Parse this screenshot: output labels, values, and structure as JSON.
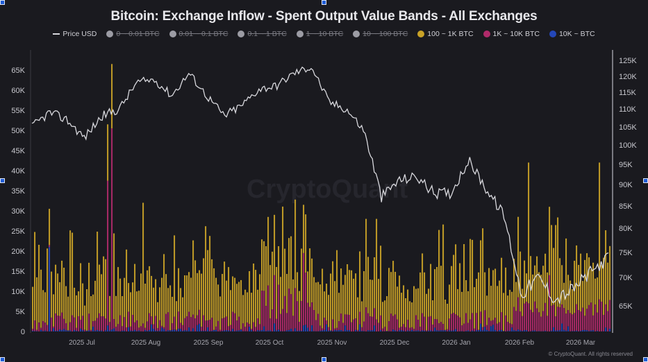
{
  "title": "Bitcoin: Exchange Inflow - Spent Output Value Bands - All Exchanges",
  "legend": [
    {
      "label": "Price USD",
      "type": "line",
      "color": "#d8d8dd",
      "enabled": true
    },
    {
      "label": "0 ~ 0.01 BTC",
      "type": "dot",
      "color": "#9c9ca4",
      "enabled": false
    },
    {
      "label": "0.01 ~ 0.1 BTC",
      "type": "dot",
      "color": "#9c9ca4",
      "enabled": false
    },
    {
      "label": "0.1 ~ 1 BTC",
      "type": "dot",
      "color": "#9c9ca4",
      "enabled": false
    },
    {
      "label": "1 ~ 10 BTC",
      "type": "dot",
      "color": "#9c9ca4",
      "enabled": false
    },
    {
      "label": "10 ~ 100 BTC",
      "type": "dot",
      "color": "#9c9ca4",
      "enabled": false
    },
    {
      "label": "100 ~ 1K BTC",
      "type": "dot",
      "color": "#c9a227",
      "enabled": true
    },
    {
      "label": "1K ~ 10K BTC",
      "type": "dot",
      "color": "#b02a6a",
      "enabled": true
    },
    {
      "label": "10K ~ BTC",
      "type": "dot",
      "color": "#2447b8",
      "enabled": true
    }
  ],
  "watermark": "CryptoQuant",
  "footer": "© CryptoQuant. All rights reserved",
  "chart_data": {
    "type": "bar",
    "title": "Bitcoin: Exchange Inflow - Spent Output Value Bands - All Exchanges",
    "stacked": true,
    "xlabel": "",
    "ylabel": "BTC",
    "y2label": "Price USD",
    "ylim": [
      0,
      67000
    ],
    "y2lim": [
      60000,
      127000
    ],
    "y_ticks": [
      "0",
      "5K",
      "10K",
      "15K",
      "20K",
      "25K",
      "30K",
      "35K",
      "40K",
      "45K",
      "50K",
      "55K",
      "60K",
      "65K"
    ],
    "y2_ticks": [
      "65K",
      "70K",
      "75K",
      "80K",
      "85K",
      "90K",
      "95K",
      "100K",
      "105K",
      "110K",
      "115K",
      "120K",
      "125K"
    ],
    "x_ticks": [
      "2025 Jul",
      "2025 Aug",
      "2025 Sep",
      "2025 Oct",
      "2025 Nov",
      "2025 Dec",
      "2026 Jan",
      "2026 Feb",
      "2026 Mar"
    ],
    "grid": false,
    "legend_position": "top",
    "notable_peaks": [
      {
        "x": "2025 Jun (late)",
        "total": 30500,
        "series": "10K ~ BTC portion ≈ 21000"
      },
      {
        "x": "2025 Jul (mid)",
        "total": 66500,
        "series": "100 ~ 1K BTC"
      },
      {
        "x": "2025 Jul (mid)",
        "total": 54000,
        "series": "1K ~ 10K BTC portion ≈ 50000"
      },
      {
        "x": "2025 Oct (early)",
        "total": 33000,
        "series": "100 ~ 1K BTC"
      },
      {
        "x": "2025 Nov (late)",
        "total": 31000,
        "series": "100 ~ 1K BTC"
      },
      {
        "x": "2026 Feb (early)",
        "total": 46000,
        "series": "100 ~ 1K BTC"
      },
      {
        "x": "2026 Mar (late)",
        "total": 44000,
        "series": "100 ~ 1K BTC"
      }
    ],
    "series": [
      {
        "name": "100 ~ 1K BTC",
        "color": "#c9a227",
        "type": "bar",
        "monthly_typical_range": [
          3000,
          30000
        ]
      },
      {
        "name": "1K ~ 10K BTC",
        "color": "#b02a6a",
        "type": "bar",
        "monthly_typical_range": [
          500,
          20000
        ]
      },
      {
        "name": "10K ~ BTC",
        "color": "#2447b8",
        "type": "bar",
        "monthly_typical_range": [
          0,
          21000
        ]
      },
      {
        "name": "Price USD",
        "color": "#d8d8dd",
        "type": "line",
        "axis": "right",
        "x": [
          "2025 Jun 20",
          "2025 Jun 25",
          "2025 Jul 1",
          "2025 Jul 5",
          "2025 Jul 10",
          "2025 Jul 15",
          "2025 Jul 20",
          "2025 Aug 1",
          "2025 Aug 5",
          "2025 Aug 14",
          "2025 Aug 20",
          "2025 Sep 1",
          "2025 Sep 10",
          "2025 Sep 20",
          "2025 Oct 1",
          "2025 Oct 6",
          "2025 Oct 11",
          "2025 Oct 20",
          "2025 Nov 1",
          "2025 Nov 10",
          "2025 Nov 21",
          "2025 Dec 1",
          "2025 Dec 10",
          "2025 Dec 20",
          "2026 Jan 1",
          "2026 Jan 14",
          "2026 Jan 25",
          "2026 Feb 1",
          "2026 Feb 6",
          "2026 Feb 15",
          "2026 Mar 1",
          "2026 Mar 10",
          "2026 Mar 20",
          "2026 Mar 25"
        ],
        "values": [
          105000,
          109000,
          107000,
          102000,
          108000,
          110000,
          118000,
          119000,
          114000,
          121000,
          114000,
          108000,
          111000,
          116000,
          117000,
          121000,
          123000,
          112000,
          110000,
          104000,
          87000,
          91000,
          92000,
          88000,
          88000,
          96000,
          89000,
          83000,
          67000,
          70000,
          66000,
          68000,
          71000,
          74000
        ]
      }
    ]
  }
}
